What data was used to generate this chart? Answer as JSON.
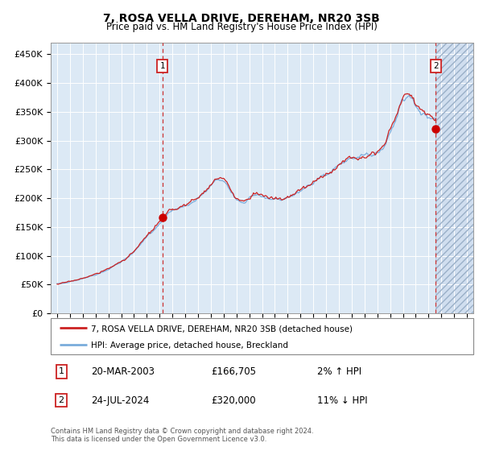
{
  "title": "7, ROSA VELLA DRIVE, DEREHAM, NR20 3SB",
  "subtitle": "Price paid vs. HM Land Registry's House Price Index (HPI)",
  "hpi_label": "HPI: Average price, detached house, Breckland",
  "property_label": "7, ROSA VELLA DRIVE, DEREHAM, NR20 3SB (detached house)",
  "footer": "Contains HM Land Registry data © Crown copyright and database right 2024.\nThis data is licensed under the Open Government Licence v3.0.",
  "sale1_date": "20-MAR-2003",
  "sale1_price": 166705,
  "sale1_hpi": "2% ↑ HPI",
  "sale2_date": "24-JUL-2024",
  "sale2_price": 320000,
  "sale2_hpi": "11% ↓ HPI",
  "xlim_start": 1994.5,
  "xlim_end": 2027.5,
  "ylim_bottom": 0,
  "ylim_top": 470000,
  "background_color": "#dce9f5",
  "hpi_line_color": "#7aacdc",
  "property_line_color": "#cc2222",
  "marker_color": "#cc0000",
  "grid_color": "#ffffff",
  "sale1_x": 2003.22,
  "sale2_x": 2024.57,
  "yticks": [
    0,
    50000,
    100000,
    150000,
    200000,
    250000,
    300000,
    350000,
    400000,
    450000
  ],
  "ytick_labels": [
    "£0",
    "£50K",
    "£100K",
    "£150K",
    "£200K",
    "£250K",
    "£300K",
    "£350K",
    "£400K",
    "£450K"
  ],
  "xticks": [
    1995,
    1996,
    1997,
    1998,
    1999,
    2000,
    2001,
    2002,
    2003,
    2004,
    2005,
    2006,
    2007,
    2008,
    2009,
    2010,
    2011,
    2012,
    2013,
    2014,
    2015,
    2016,
    2017,
    2018,
    2019,
    2020,
    2021,
    2022,
    2023,
    2024,
    2025,
    2026,
    2027
  ]
}
